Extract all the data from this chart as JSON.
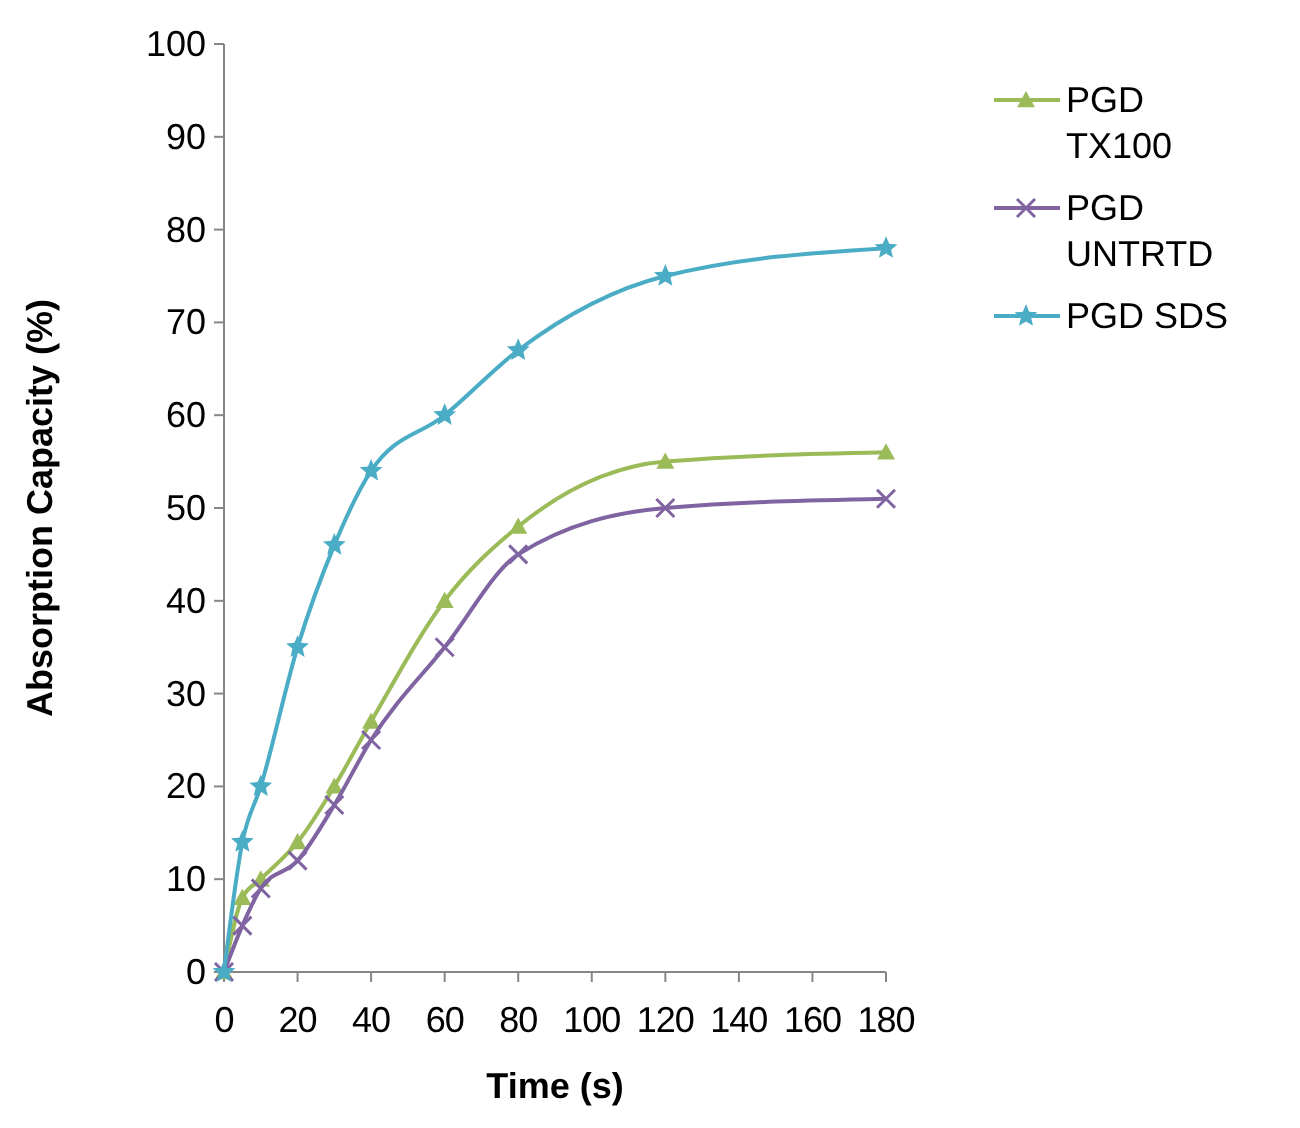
{
  "chart_data": {
    "type": "line",
    "xlabel": "Time (s)",
    "ylabel": "Absorption Capacity (%)",
    "x": [
      0,
      5,
      10,
      20,
      30,
      40,
      60,
      80,
      120,
      180
    ],
    "series": [
      {
        "name": "PGD TX100",
        "color": "#9bbb59",
        "marker": "triangle",
        "values": [
          0,
          8,
          10,
          14,
          20,
          27,
          40,
          48,
          55,
          56
        ]
      },
      {
        "name": "PGD UNTRTD",
        "color": "#8064a2",
        "marker": "cross",
        "values": [
          0,
          5,
          9,
          12,
          18,
          25,
          35,
          45,
          50,
          51
        ]
      },
      {
        "name": "PGD SDS",
        "color": "#4bacc6",
        "marker": "star",
        "values": [
          0,
          14,
          20,
          35,
          46,
          54,
          60,
          67,
          75,
          78
        ]
      }
    ],
    "xlim": [
      0,
      180
    ],
    "xticks": [
      0,
      20,
      40,
      60,
      80,
      100,
      120,
      140,
      160,
      180
    ],
    "ylim": [
      0,
      100
    ],
    "yticks": [
      0,
      10,
      20,
      30,
      40,
      50,
      60,
      70,
      80,
      90,
      100
    ],
    "grid": false,
    "legend": "right"
  }
}
